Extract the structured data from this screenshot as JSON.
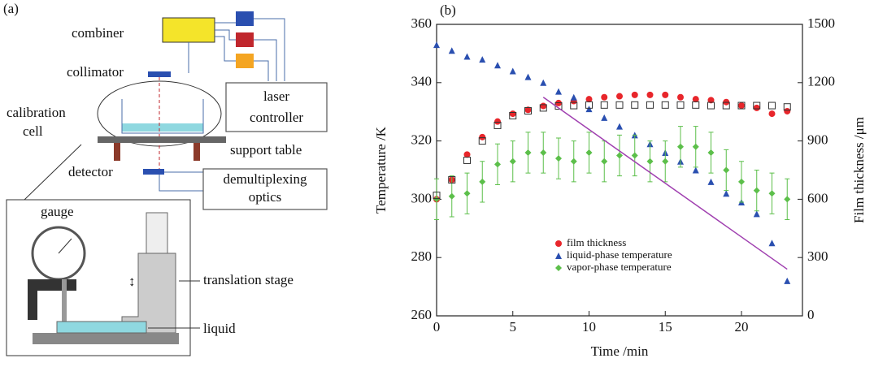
{
  "panel_a": {
    "label": "(a)",
    "combiner": "combiner",
    "collimator": "collimator",
    "calibration_cell": [
      "calibration",
      "cell"
    ],
    "laser_controller": [
      "laser",
      "controller"
    ],
    "support_table": "support table",
    "detector": "detector",
    "demultiplexing_optics": [
      "demultiplexing",
      "optics"
    ],
    "gauge": "gauge",
    "translation_stage": "translation stage",
    "liquid": "liquid"
  },
  "chart_data": {
    "type": "scatter",
    "panel_label": "(b)",
    "x_label": "Time /min",
    "y_label": "Temperature /K",
    "y2_label": "Film thickness /μm",
    "xlim": [
      0,
      24
    ],
    "xticks": [
      0,
      5,
      10,
      15,
      20
    ],
    "ylim": [
      260,
      360
    ],
    "yticks": [
      260,
      280,
      300,
      320,
      340,
      360
    ],
    "y2lim": [
      0,
      1500
    ],
    "y2ticks": [
      0,
      300,
      600,
      900,
      1200,
      1500
    ],
    "legend": "lower center",
    "series": [
      {
        "name": "film thickness",
        "color": "#e8262b",
        "marker": "circle",
        "axis": "y2",
        "x": [
          0,
          1,
          2,
          3,
          4,
          5,
          6,
          7,
          8,
          9,
          10,
          11,
          12,
          13,
          14,
          15,
          16,
          17,
          18,
          19,
          20,
          21,
          22,
          23
        ],
        "values": [
          600,
          700,
          830,
          920,
          1000,
          1040,
          1060,
          1080,
          1095,
          1105,
          1115,
          1125,
          1130,
          1137,
          1137,
          1137,
          1125,
          1115,
          1110,
          1100,
          1082,
          1070,
          1040,
          1053
        ]
      },
      {
        "name": "liquid-phase temperature",
        "color": "#2a4fb0",
        "marker": "triangle",
        "x": [
          0,
          1,
          2,
          3,
          4,
          5,
          6,
          7,
          8,
          9,
          10,
          11,
          12,
          13,
          14,
          15,
          16,
          17,
          18,
          19,
          20,
          21,
          22,
          23
        ],
        "values": [
          353,
          351,
          349,
          348,
          346,
          344,
          342,
          340,
          337,
          335,
          331,
          328,
          325,
          322,
          319,
          316,
          313,
          310,
          306,
          302,
          299,
          295,
          285,
          272
        ]
      },
      {
        "name": "vapor-phase temperature",
        "color": "#5cbf4a",
        "marker": "diamond",
        "x": [
          0,
          1,
          2,
          3,
          4,
          5,
          6,
          7,
          8,
          9,
          10,
          11,
          12,
          13,
          14,
          15,
          16,
          17,
          18,
          19,
          20,
          21,
          22,
          23
        ],
        "values": [
          300,
          301,
          302,
          306,
          312,
          313,
          316,
          316,
          314,
          313,
          316,
          313,
          315,
          315,
          313,
          313,
          318,
          318,
          316,
          310,
          306,
          303,
          302,
          300
        ],
        "errors": [
          7,
          7,
          7,
          7,
          7,
          7,
          7,
          7,
          7,
          7,
          7,
          7,
          7,
          7,
          7,
          7,
          7,
          7,
          7,
          7,
          7,
          7,
          7,
          7
        ]
      },
      {
        "color": "#333333",
        "marker": "open-square",
        "axis": "y2",
        "x": [
          0,
          1,
          2,
          3,
          4,
          5,
          6,
          7,
          8,
          9,
          10,
          11,
          12,
          13,
          14,
          15,
          16,
          17,
          18,
          19,
          20,
          21,
          22,
          23
        ],
        "values": [
          620,
          700,
          800,
          900,
          980,
          1030,
          1055,
          1070,
          1080,
          1082,
          1085,
          1085,
          1085,
          1085,
          1085,
          1085,
          1085,
          1085,
          1082,
          1082,
          1082,
          1082,
          1082,
          1075
        ]
      },
      {
        "color": "#a040b0",
        "marker": "line",
        "x": [
          7,
          23
        ],
        "values": [
          335,
          276
        ]
      }
    ]
  }
}
